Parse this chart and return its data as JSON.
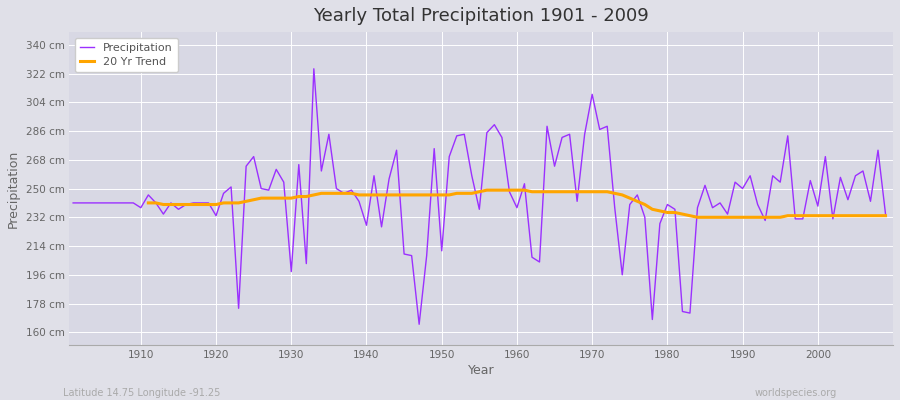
{
  "title": "Yearly Total Precipitation 1901 - 2009",
  "xlabel": "Year",
  "ylabel": "Precipitation",
  "subtitle_left": "Latitude 14.75 Longitude -91.25",
  "subtitle_right": "worldspecies.org",
  "precip_color": "#9B30FF",
  "trend_color": "#FFA500",
  "fig_bg_color": "#E0E0E8",
  "plot_bg_color": "#D8D8E4",
  "grid_color": "#FFFFFF",
  "ytick_labels": [
    "160 cm",
    "178 cm",
    "196 cm",
    "214 cm",
    "232 cm",
    "250 cm",
    "268 cm",
    "286 cm",
    "304 cm",
    "322 cm",
    "340 cm"
  ],
  "ytick_values": [
    160,
    178,
    196,
    214,
    232,
    250,
    268,
    286,
    304,
    322,
    340
  ],
  "ylim": [
    152,
    348
  ],
  "xlim": [
    1900.5,
    2010
  ],
  "years": [
    1901,
    1902,
    1903,
    1904,
    1905,
    1906,
    1907,
    1908,
    1909,
    1910,
    1911,
    1912,
    1913,
    1914,
    1915,
    1916,
    1917,
    1918,
    1919,
    1920,
    1921,
    1922,
    1923,
    1924,
    1925,
    1926,
    1927,
    1928,
    1929,
    1930,
    1931,
    1932,
    1933,
    1934,
    1935,
    1936,
    1937,
    1938,
    1939,
    1940,
    1941,
    1942,
    1943,
    1944,
    1945,
    1946,
    1947,
    1948,
    1949,
    1950,
    1951,
    1952,
    1953,
    1954,
    1955,
    1956,
    1957,
    1958,
    1959,
    1960,
    1961,
    1962,
    1963,
    1964,
    1965,
    1966,
    1967,
    1968,
    1969,
    1970,
    1971,
    1972,
    1973,
    1974,
    1975,
    1976,
    1977,
    1978,
    1979,
    1980,
    1981,
    1982,
    1983,
    1984,
    1985,
    1986,
    1987,
    1988,
    1989,
    1990,
    1991,
    1992,
    1993,
    1994,
    1995,
    1996,
    1997,
    1998,
    1999,
    2000,
    2001,
    2002,
    2003,
    2004,
    2005,
    2006,
    2007,
    2008,
    2009
  ],
  "precip": [
    241,
    241,
    241,
    241,
    241,
    241,
    241,
    241,
    241,
    238,
    246,
    241,
    234,
    241,
    237,
    240,
    241,
    241,
    241,
    233,
    247,
    251,
    175,
    264,
    270,
    250,
    249,
    262,
    254,
    198,
    265,
    203,
    325,
    261,
    284,
    250,
    247,
    249,
    242,
    227,
    258,
    226,
    256,
    274,
    209,
    208,
    165,
    208,
    275,
    211,
    270,
    283,
    284,
    258,
    237,
    285,
    290,
    282,
    248,
    238,
    253,
    207,
    204,
    289,
    264,
    282,
    284,
    242,
    284,
    309,
    287,
    289,
    238,
    196,
    240,
    246,
    232,
    168,
    228,
    240,
    237,
    173,
    172,
    238,
    252,
    238,
    241,
    234,
    254,
    250,
    258,
    240,
    230,
    258,
    254,
    283,
    231,
    231,
    255,
    239,
    270,
    231,
    257,
    243,
    258,
    261,
    242,
    274,
    234
  ],
  "trend": [
    null,
    null,
    null,
    null,
    null,
    null,
    null,
    null,
    null,
    null,
    241,
    241,
    240,
    240,
    240,
    240,
    240,
    240,
    240,
    240,
    241,
    241,
    241,
    242,
    243,
    244,
    244,
    244,
    244,
    244,
    245,
    245,
    246,
    247,
    247,
    247,
    247,
    247,
    246,
    246,
    246,
    246,
    246,
    246,
    246,
    246,
    246,
    246,
    246,
    246,
    246,
    247,
    247,
    247,
    248,
    249,
    249,
    249,
    249,
    249,
    249,
    248,
    248,
    248,
    248,
    248,
    248,
    248,
    248,
    248,
    248,
    248,
    247,
    246,
    244,
    242,
    240,
    237,
    236,
    235,
    235,
    234,
    233,
    232,
    232,
    232,
    232,
    232,
    232,
    232,
    232,
    232,
    232,
    232,
    232,
    233,
    233,
    233,
    233,
    233,
    233,
    233,
    233,
    233,
    233,
    233,
    233,
    233,
    233
  ]
}
